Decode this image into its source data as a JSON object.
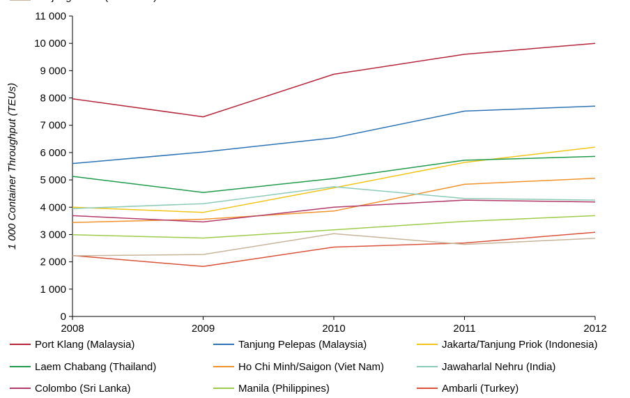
{
  "chart_data": {
    "type": "line",
    "title": "",
    "xlabel": "",
    "ylabel": "1 000 Container  Throughput (TEUs)",
    "x": [
      "2008",
      "2009",
      "2010",
      "2011",
      "2012"
    ],
    "ylim": [
      0,
      11000
    ],
    "yticks": [
      0,
      1000,
      2000,
      3000,
      4000,
      5000,
      6000,
      7000,
      8000,
      9000,
      10000,
      11000
    ],
    "ytick_labels": [
      "0",
      "1 000",
      "2 000",
      "3 000",
      "4 000",
      "5 000",
      "6 000",
      "7 000",
      "8 000",
      "9 000",
      "10 000",
      "11 000"
    ],
    "grid": false,
    "legend_position": "bottom",
    "series": [
      {
        "name": "Port Klang (Malaysia)",
        "color": "#b5253a",
        "values": [
          7970,
          7310,
          8870,
          9600,
          10000
        ]
      },
      {
        "name": "Tanjung Pelepas (Malaysia)",
        "color": "#2a72b5",
        "values": [
          5600,
          6020,
          6540,
          7520,
          7700
        ]
      },
      {
        "name": "Jakarta/Tanjung Priok (Indonesia)",
        "color": "#f2c418",
        "values": [
          4000,
          3810,
          4710,
          5640,
          6200
        ]
      },
      {
        "name": "Laem Chabang (Thailand)",
        "color": "#1e9a4a",
        "values": [
          5130,
          4540,
          5050,
          5720,
          5860
        ]
      },
      {
        "name": "Ho Chi Minh/Saigon (Viet Nam)",
        "color": "#f0922b",
        "values": [
          3440,
          3560,
          3860,
          4840,
          5060
        ]
      },
      {
        "name": "Jawaharlal Nehru (India)",
        "color": "#8ccab5",
        "values": [
          3950,
          4130,
          4750,
          4320,
          4260
        ]
      },
      {
        "name": "Colombo (Sri Lanka)",
        "color": "#b23a6a",
        "values": [
          3690,
          3460,
          4000,
          4260,
          4190
        ]
      },
      {
        "name": "Manila (Philippines)",
        "color": "#9ccc4a",
        "values": [
          2990,
          2870,
          3170,
          3480,
          3690
        ]
      },
      {
        "name": "Ambarli (Turkey)",
        "color": "#d9523a",
        "values": [
          2230,
          1830,
          2540,
          2690,
          3080
        ]
      },
      {
        "name": "Tanjung Perak (Indonesia)",
        "color": "#c8b49a",
        "values": [
          2220,
          2270,
          3030,
          2640,
          2860
        ]
      }
    ]
  }
}
